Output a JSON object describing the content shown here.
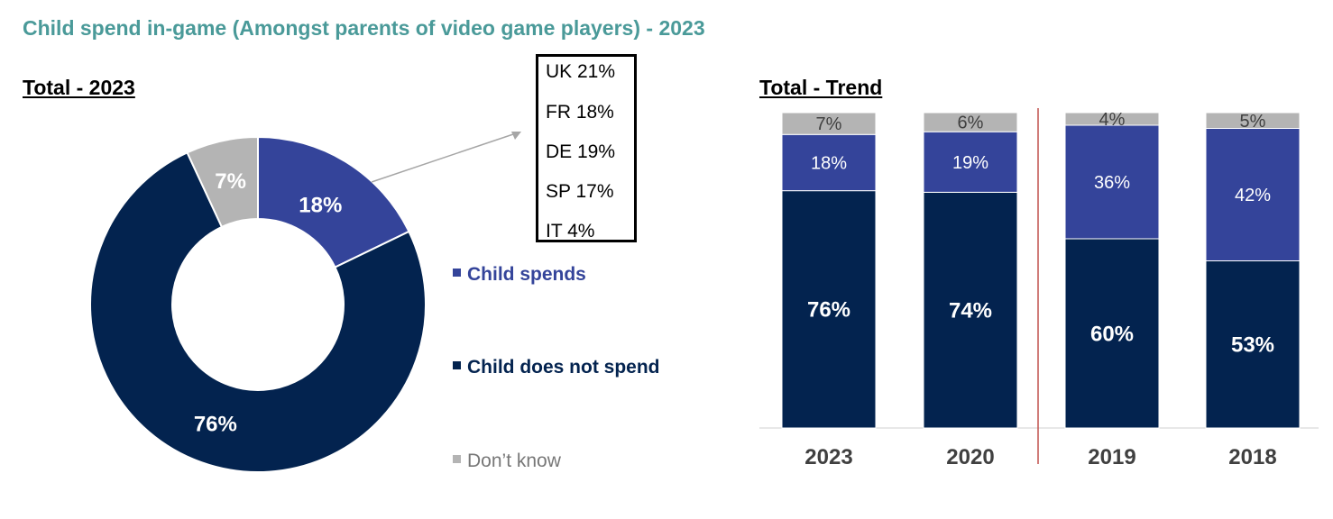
{
  "title": "Child spend in-game (Amongst parents of video game players) - 2023",
  "donut_section_title": "Total - 2023",
  "trend_section_title": "Total - Trend",
  "country_breakdown": [
    "UK 21%",
    "FR 18%",
    "DE 19%",
    "SP 17%",
    "IT 4%"
  ],
  "colors": {
    "title": "#4a9a99",
    "child_spends": "#34449a",
    "child_does_not_spend": "#03234f",
    "dont_know": "#b4b4b4",
    "divider": "#c0504d"
  },
  "chart_data": [
    {
      "type": "pie",
      "subtype": "donut",
      "title": "Total - 2023",
      "slices": [
        {
          "label": "Child spends",
          "value": 18,
          "display": "18%"
        },
        {
          "label": "Child does not spend",
          "value": 76,
          "display": "76%"
        },
        {
          "label": "Don’t know",
          "value": 7,
          "display": "7%"
        }
      ],
      "legend_placement": "right",
      "legend": [
        "Child spends",
        "Child does not spend",
        "Don’t know"
      ]
    },
    {
      "type": "bar",
      "subtype": "stacked-100",
      "title": "Total - Trend",
      "categories": [
        "2023",
        "2020",
        "2019",
        "2018"
      ],
      "series": [
        {
          "name": "Child does not spend",
          "values": [
            76,
            74,
            60,
            53
          ],
          "labels": [
            "76%",
            "74%",
            "60%",
            "53%"
          ]
        },
        {
          "name": "Child spends",
          "values": [
            18,
            19,
            36,
            42
          ],
          "labels": [
            "18%",
            "19%",
            "36%",
            "42%"
          ]
        },
        {
          "name": "Don’t know",
          "values": [
            7,
            6,
            4,
            5
          ],
          "labels": [
            "7%",
            "6%",
            "4%",
            "5%"
          ]
        }
      ],
      "ylim": [
        0,
        100
      ],
      "grid": false,
      "divider_between": [
        "2020",
        "2019"
      ]
    }
  ]
}
